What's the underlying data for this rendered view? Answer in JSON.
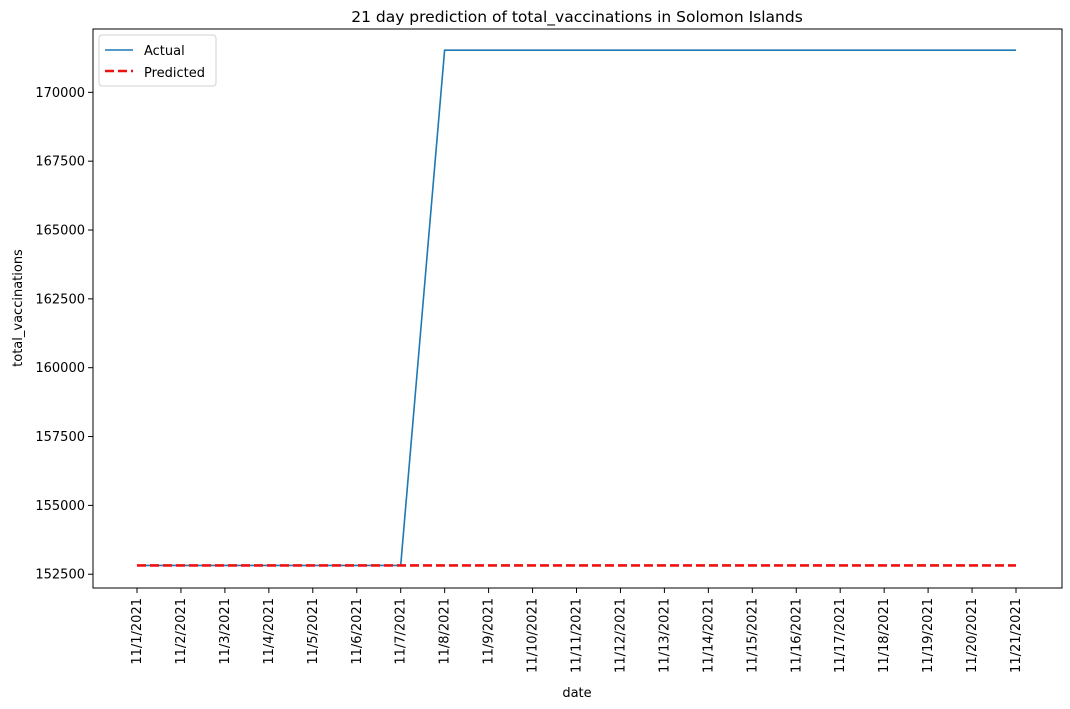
{
  "chart_data": {
    "type": "line",
    "title": "21 day prediction of total_vaccinations in Solomon Islands",
    "xlabel": "date",
    "ylabel": "total_vaccinations",
    "categories": [
      "11/1/2021",
      "11/2/2021",
      "11/3/2021",
      "11/4/2021",
      "11/5/2021",
      "11/6/2021",
      "11/7/2021",
      "11/8/2021",
      "11/9/2021",
      "11/10/2021",
      "11/11/2021",
      "11/12/2021",
      "11/13/2021",
      "11/14/2021",
      "11/15/2021",
      "11/16/2021",
      "11/17/2021",
      "11/18/2021",
      "11/19/2021",
      "11/20/2021",
      "11/21/2021"
    ],
    "ylim": [
      152000,
      172300
    ],
    "yticks": [
      152500,
      155000,
      157500,
      160000,
      162500,
      165000,
      167500,
      170000
    ],
    "ytick_labels": [
      "152500",
      "155000",
      "157500",
      "160000",
      "162500",
      "165000",
      "167500",
      "170000"
    ],
    "grid": false,
    "legend_position": "top-left",
    "series": [
      {
        "name": "Actual",
        "color": "#1f77b4",
        "style": "solid",
        "values": [
          152820,
          152820,
          152820,
          152820,
          152820,
          152820,
          152820,
          171530,
          171530,
          171530,
          171530,
          171530,
          171530,
          171530,
          171530,
          171530,
          171530,
          171530,
          171530,
          171530,
          171530
        ]
      },
      {
        "name": "Predicted",
        "color": "#ee1111",
        "style": "dashed",
        "values": [
          152820,
          152820,
          152820,
          152820,
          152820,
          152820,
          152820,
          152820,
          152820,
          152820,
          152820,
          152820,
          152820,
          152820,
          152820,
          152820,
          152820,
          152820,
          152820,
          152820,
          152820
        ]
      }
    ]
  }
}
